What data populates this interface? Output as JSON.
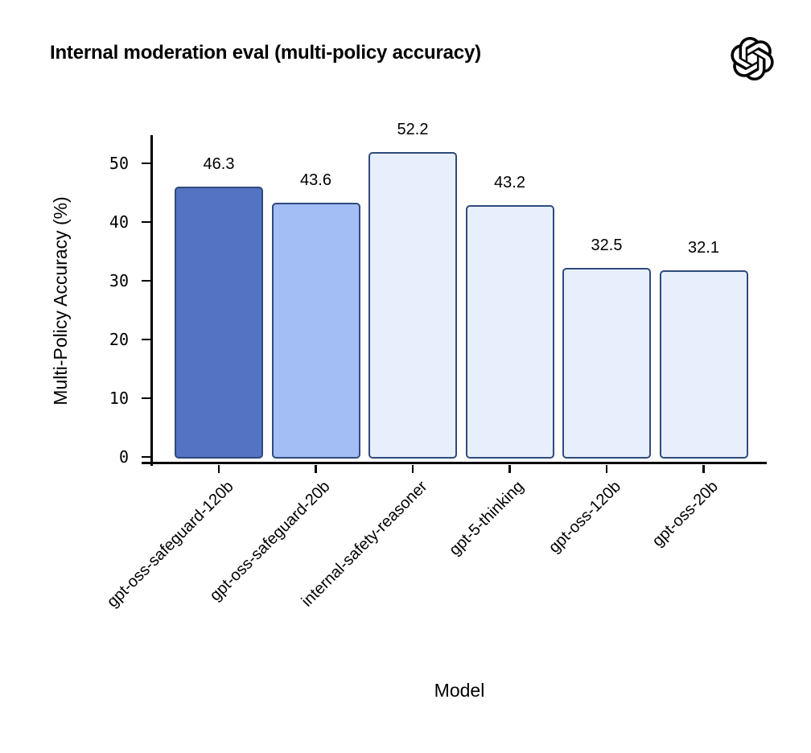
{
  "header": {
    "title": "Internal moderation eval (multi-policy accuracy)",
    "logo_icon": "openai-logo"
  },
  "chart_data": {
    "type": "bar",
    "title": "Internal moderation eval (multi-policy accuracy)",
    "xlabel": "Model",
    "ylabel": "Multi-Policy Accuracy (%)",
    "categories": [
      "gpt-oss-safeguard-120b",
      "gpt-oss-safeguard-20b",
      "internal-safety-reasoner",
      "gpt-5-thinking",
      "gpt-oss-120b",
      "gpt-oss-20b"
    ],
    "values": [
      46.3,
      43.6,
      52.2,
      43.2,
      32.5,
      32.1
    ],
    "value_labels": [
      "46.3",
      "43.6",
      "52.2",
      "43.2",
      "32.5",
      "32.1"
    ],
    "bar_colors": [
      "#5274C2",
      "#A3BDF5",
      "#E8EFFC",
      "#E8EFFC",
      "#E8EFFC",
      "#E8EFFC"
    ],
    "bar_edge_color": "#2F4A7D",
    "axis_color": "#000000",
    "text_color": "#000000",
    "ylim": [
      0,
      55
    ],
    "yticks": [
      0,
      10,
      20,
      30,
      40,
      50
    ],
    "grid": false,
    "legend": null
  }
}
